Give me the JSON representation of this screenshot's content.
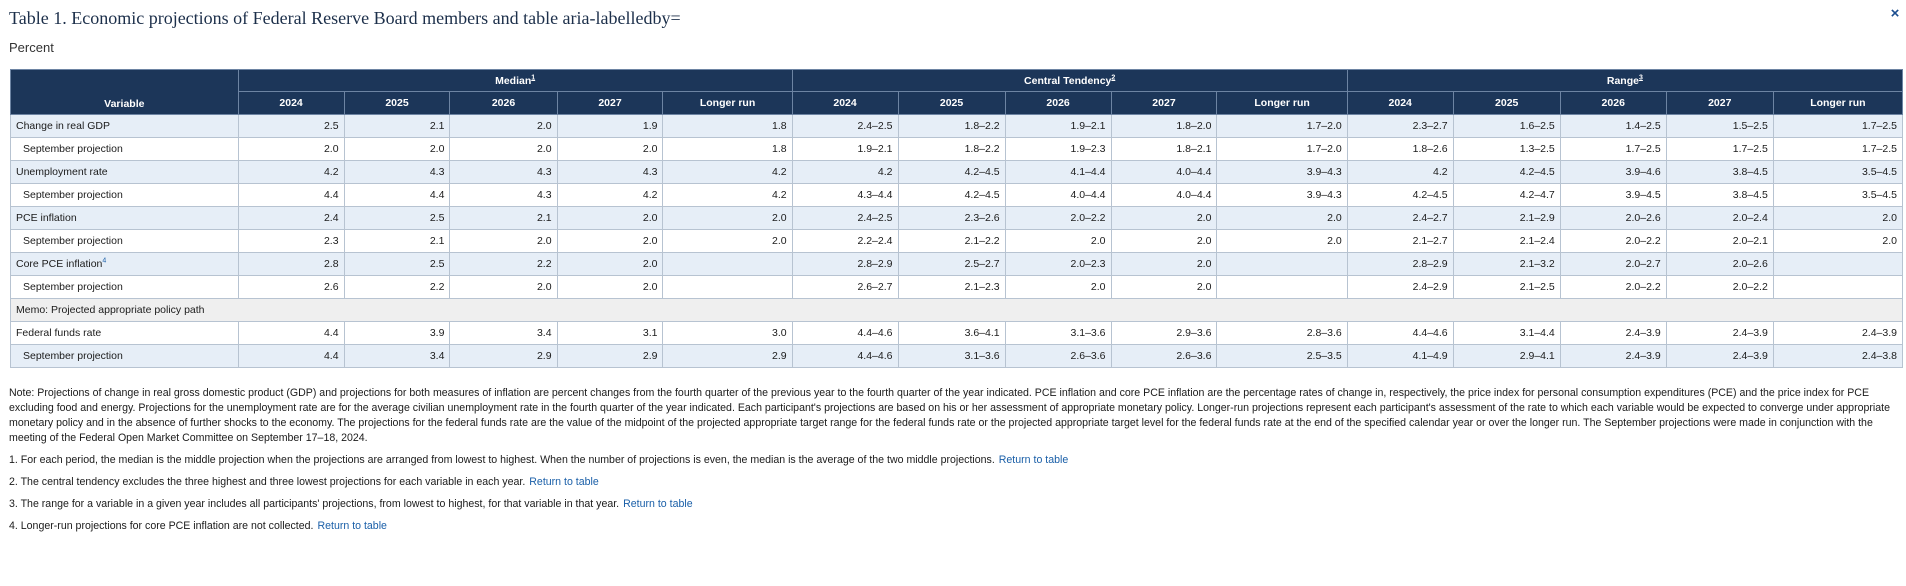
{
  "page": {
    "title": "Table 1. Economic projections of Federal Reserve Board members and table aria-labelledby=",
    "subtitle": "Percent",
    "close_label": "×"
  },
  "table": {
    "variable_header": "Variable",
    "groups": [
      {
        "label": "Median",
        "footnote": "1"
      },
      {
        "label": "Central Tendency",
        "footnote": "2"
      },
      {
        "label": "Range",
        "footnote": "3"
      }
    ],
    "columns": [
      "2024",
      "2025",
      "2026",
      "2027",
      "Longer run"
    ],
    "rows": [
      {
        "label": "Change in real GDP",
        "type": "main",
        "values": [
          "2.5",
          "2.1",
          "2.0",
          "1.9",
          "1.8",
          "2.4–2.5",
          "1.8–2.2",
          "1.9–2.1",
          "1.8–2.0",
          "1.7–2.0",
          "2.3–2.7",
          "1.6–2.5",
          "1.4–2.5",
          "1.5–2.5",
          "1.7–2.5"
        ]
      },
      {
        "label": "September projection",
        "type": "sept",
        "values": [
          "2.0",
          "2.0",
          "2.0",
          "2.0",
          "1.8",
          "1.9–2.1",
          "1.8–2.2",
          "1.9–2.3",
          "1.8–2.1",
          "1.7–2.0",
          "1.8–2.6",
          "1.3–2.5",
          "1.7–2.5",
          "1.7–2.5",
          "1.7–2.5"
        ]
      },
      {
        "label": "Unemployment rate",
        "type": "main",
        "values": [
          "4.2",
          "4.3",
          "4.3",
          "4.3",
          "4.2",
          "4.2",
          "4.2–4.5",
          "4.1–4.4",
          "4.0–4.4",
          "3.9–4.3",
          "4.2",
          "4.2–4.5",
          "3.9–4.6",
          "3.8–4.5",
          "3.5–4.5"
        ]
      },
      {
        "label": "September projection",
        "type": "sept",
        "values": [
          "4.4",
          "4.4",
          "4.3",
          "4.2",
          "4.2",
          "4.3–4.4",
          "4.2–4.5",
          "4.0–4.4",
          "4.0–4.4",
          "3.9–4.3",
          "4.2–4.5",
          "4.2–4.7",
          "3.9–4.5",
          "3.8–4.5",
          "3.5–4.5"
        ]
      },
      {
        "label": "PCE inflation",
        "type": "main",
        "values": [
          "2.4",
          "2.5",
          "2.1",
          "2.0",
          "2.0",
          "2.4–2.5",
          "2.3–2.6",
          "2.0–2.2",
          "2.0",
          "2.0",
          "2.4–2.7",
          "2.1–2.9",
          "2.0–2.6",
          "2.0–2.4",
          "2.0"
        ]
      },
      {
        "label": "September projection",
        "type": "sept",
        "values": [
          "2.3",
          "2.1",
          "2.0",
          "2.0",
          "2.0",
          "2.2–2.4",
          "2.1–2.2",
          "2.0",
          "2.0",
          "2.0",
          "2.1–2.7",
          "2.1–2.4",
          "2.0–2.2",
          "2.0–2.1",
          "2.0"
        ]
      },
      {
        "label": "Core PCE inflation",
        "footnote": "4",
        "type": "main",
        "values": [
          "2.8",
          "2.5",
          "2.2",
          "2.0",
          "",
          "2.8–2.9",
          "2.5–2.7",
          "2.0–2.3",
          "2.0",
          "",
          "2.8–2.9",
          "2.1–3.2",
          "2.0–2.7",
          "2.0–2.6",
          ""
        ]
      },
      {
        "label": "September projection",
        "type": "sept",
        "values": [
          "2.6",
          "2.2",
          "2.0",
          "2.0",
          "",
          "2.6–2.7",
          "2.1–2.3",
          "2.0",
          "2.0",
          "",
          "2.4–2.9",
          "2.1–2.5",
          "2.0–2.2",
          "2.0–2.2",
          ""
        ]
      },
      {
        "label": "Memo: Projected appropriate policy path",
        "type": "memo",
        "values": []
      },
      {
        "label": "Federal funds rate",
        "type": "sept",
        "values": [
          "4.4",
          "3.9",
          "3.4",
          "3.1",
          "3.0",
          "4.4–4.6",
          "3.6–4.1",
          "3.1–3.6",
          "2.9–3.6",
          "2.8–3.6",
          "4.4–4.6",
          "3.1–4.4",
          "2.4–3.9",
          "2.4–3.9",
          "2.4–3.9"
        ]
      },
      {
        "label": "September projection",
        "type": "sept2",
        "values": [
          "4.4",
          "3.4",
          "2.9",
          "2.9",
          "2.9",
          "4.4–4.6",
          "3.1–3.6",
          "2.6–3.6",
          "2.6–3.6",
          "2.5–3.5",
          "4.1–4.9",
          "2.9–4.1",
          "2.4–3.9",
          "2.4–3.9",
          "2.4–3.8"
        ]
      }
    ]
  },
  "notes": {
    "main": "Note: Projections of change in real gross domestic product (GDP) and projections for both measures of inflation are percent changes from the fourth quarter of the previous year to the fourth quarter of the year indicated. PCE inflation and core PCE inflation are the percentage rates of change in, respectively, the price index for personal consumption expenditures (PCE) and the price index for PCE excluding food and energy. Projections for the unemployment rate are for the average civilian unemployment rate in the fourth quarter of the year indicated. Each participant's projections are based on his or her assessment of appropriate monetary policy. Longer-run projections represent each participant's assessment of the rate to which each variable would be expected to converge under appropriate monetary policy and in the absence of further shocks to the economy. The projections for the federal funds rate are the value of the midpoint of the projected appropriate target range for the federal funds rate or the projected appropriate target level for the federal funds rate at the end of the specified calendar year or over the longer run. The September projections were made in conjunction with the meeting of the Federal Open Market Committee on September 17–18, 2024.",
    "footnotes": [
      {
        "text": "1. For each period, the median is the middle projection when the projections are arranged from lowest to highest. When the number of projections is even, the median is the average of the two middle projections.",
        "link": "Return to table"
      },
      {
        "text": "2. The central tendency excludes the three highest and three lowest projections for each variable in each year.",
        "link": "Return to table"
      },
      {
        "text": "3. The range for a variable in a given year includes all participants' projections, from lowest to highest, for that variable in that year.",
        "link": "Return to table"
      },
      {
        "text": "4. Longer-run projections for core PCE inflation are not collected.",
        "link": "Return to table"
      }
    ]
  }
}
